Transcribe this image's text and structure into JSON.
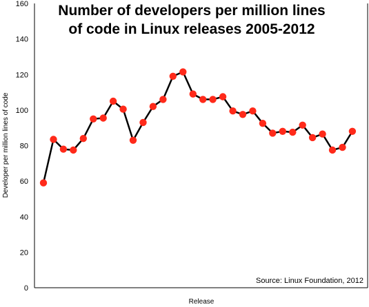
{
  "chart_data": {
    "type": "line",
    "title_lines": [
      "Number of developers per million lines",
      "of code in Linux releases 2005-2012"
    ],
    "xlabel": "Release",
    "ylabel": "Developer per million lines of code",
    "ylim": [
      0,
      160
    ],
    "yticks": [
      "0",
      "20",
      "40",
      "60",
      "80",
      "100",
      "120",
      "140",
      "160"
    ],
    "grid": false,
    "annotation": "Source: Linux Foundation, 2012",
    "values": [
      59,
      83.5,
      78,
      77.5,
      84,
      95,
      95.5,
      105,
      100.5,
      83,
      93,
      102,
      106,
      119,
      121.5,
      109,
      106,
      106,
      107.5,
      99.5,
      97.5,
      99.5,
      92.5,
      87,
      88,
      87.5,
      91.5,
      84.5,
      86.5,
      77.5,
      79,
      88
    ],
    "line_color": "#000000",
    "marker_color": "#ff2a1a"
  }
}
